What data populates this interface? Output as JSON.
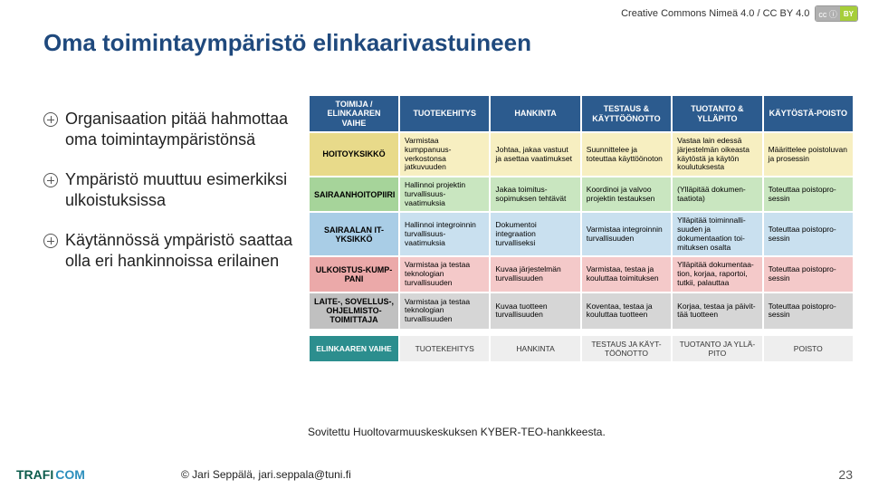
{
  "cc": {
    "text": "Creative Commons Nimeä 4.0 / CC BY 4.0",
    "badge_left": "cc ⓘ",
    "badge_right": "BY"
  },
  "title": "Oma toimintaympäristö elinkaarivastuineen",
  "bullets": [
    "Organisaation pitää hahmottaa oma toimintaympäristönsä",
    "Ympäristö muuttuu esimerkiksi ulkoistuksissa",
    "Käytännössä ympäristö saattaa olla eri hankinnoissa erilainen"
  ],
  "colors": {
    "header_bg": "#2c5b8e",
    "row_bg": [
      "#f7efc1",
      "#c9e6c0",
      "#c9e0ef",
      "#f4c9c9",
      "#d6d6d6"
    ],
    "rowhdr_bg": [
      "#e8da8a",
      "#a6d49a",
      "#a9cde6",
      "#eba9a9",
      "#c0c0c0"
    ],
    "stage_lead_bg": "#2c8e8e",
    "stage_cell_bg": "#eeeeee",
    "title_color": "#1f497d"
  },
  "headers": [
    "TOIMIJA / ELINKAAREN VAIHE",
    "TUOTEKEHITYS",
    "HANKINTA",
    "TESTAUS & KÄYTTÖÖNOTTO",
    "TUOTANTO & YLLÄPITO",
    "KÄYTÖSTÄ-POISTO"
  ],
  "rows": [
    {
      "label": "HOITOYKSIKKÖ",
      "cells": [
        "Varmistaa kumppanuus-verkostonsa jatkuvuuden",
        "Johtaa, jakaa vastuut ja asettaa vaatimukset",
        "Suunnittelee ja toteuttaa käyttöönoton",
        "Vastaa lain edessä järjestelmän oikeasta käytöstä ja käytön koulutuksesta",
        "Määrittelee poistoluvan ja prosessin"
      ]
    },
    {
      "label": "SAIRAANHOITOPIIRI",
      "cells": [
        "Hallinnoi projektin turvallisuus-vaatimuksia",
        "Jakaa toimitus-sopimuksen tehtävät",
        "Koordinoi ja valvoo projektin testauksen",
        "(Ylläpitää dokumen-taatiota)",
        "Toteuttaa poistopro-sessin"
      ]
    },
    {
      "label": "SAIRAALAN IT-YKSIKKÖ",
      "cells": [
        "Hallinnoi integroinnin turvallisuus-vaatimuksia",
        "Dokumentoi integraation turvalliseksi",
        "Varmistaa integroinnin turvallisuuden",
        "Ylläpitää toiminnalli-suuden ja dokumentaation toi-mituksen osalta",
        "Toteuttaa poistopro-sessin"
      ]
    },
    {
      "label": "ULKOISTUS-KUMP-PANI",
      "cells": [
        "Varmistaa ja testaa teknologian turvallisuuden",
        "Kuvaa järjestelmän turvallisuuden",
        "Varmistaa, testaa ja kouluttaa toimituksen",
        "Ylläpitää dokumentaa-tion, korjaa, raportoi, tutkii, palauttaa",
        "Toteuttaa poistopro-sessin"
      ]
    },
    {
      "label": "LAITE-, SOVELLUS-, OHJELMISTO-TOIMITTAJA",
      "cells": [
        "Varmistaa ja testaa teknologian turvallisuuden",
        "Kuvaa tuotteen turvallisuuden",
        "Koventaa, testaa ja kouluttaa tuotteen",
        "Korjaa, testaa ja päivit-tää tuotteen",
        "Toteuttaa poistopro-sessin"
      ]
    }
  ],
  "stage": {
    "lead": "ELINKAAREN VAIHE",
    "cells": [
      "TUOTEKEHITYS",
      "HANKINTA",
      "TESTAUS JA KÄYT-TÖÖNOTTO",
      "TUOTANTO JA YLLÄ-PITO",
      "POISTO"
    ]
  },
  "caption": "Sovitettu Huoltovarmuuskeskuksen KYBER-TEO-hankkeesta.",
  "footer": {
    "logo": "TRAFICOM",
    "copy": "© Jari Seppälä, jari.seppala@tuni.fi",
    "page": "23"
  }
}
